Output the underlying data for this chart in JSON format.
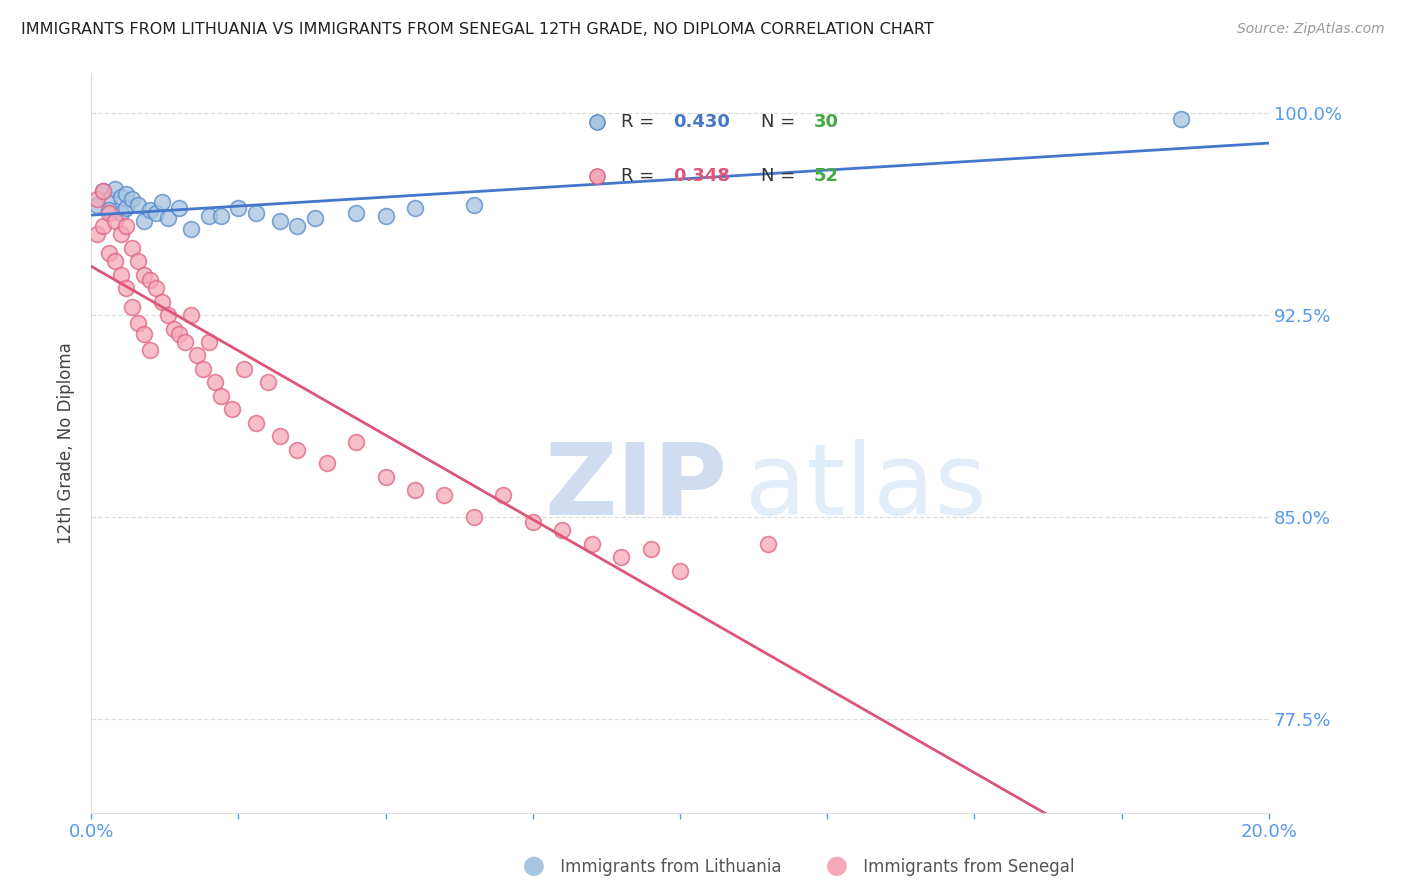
{
  "title": "IMMIGRANTS FROM LITHUANIA VS IMMIGRANTS FROM SENEGAL 12TH GRADE, NO DIPLOMA CORRELATION CHART",
  "source": "Source: ZipAtlas.com",
  "ylabel": "12th Grade, No Diploma",
  "xlim": [
    0.0,
    0.2
  ],
  "ylim": [
    0.74,
    1.015
  ],
  "yticks": [
    0.775,
    0.85,
    0.925,
    1.0
  ],
  "ytick_labels": [
    "77.5%",
    "85.0%",
    "92.5%",
    "100.0%"
  ],
  "xticks": [
    0.0,
    0.025,
    0.05,
    0.075,
    0.1,
    0.125,
    0.15,
    0.175,
    0.2
  ],
  "xtick_labels": [
    "0.0%",
    "",
    "",
    "",
    "",
    "",
    "",
    "",
    "20.0%"
  ],
  "legend_R1": "0.430",
  "legend_N1": "30",
  "legend_R2": "0.348",
  "legend_N2": "52",
  "blue_fill": "#A8C4E0",
  "blue_edge": "#5588CC",
  "pink_fill": "#F4A8B8",
  "pink_edge": "#E06080",
  "blue_line": "#4477CC",
  "pink_line": "#DD5577",
  "axis_color": "#5599EE",
  "grid_color": "#DDDDDD",
  "background_color": "#FFFFFF",
  "title_color": "#222222",
  "source_color": "#999999",
  "ylabel_color": "#444444",
  "green_color": "#44AA44",
  "legend_blue_text": "#4477CC",
  "legend_pink_text": "#DD5577",
  "lithuania_x": [
    0.001,
    0.002,
    0.003,
    0.003,
    0.004,
    0.005,
    0.005,
    0.006,
    0.006,
    0.007,
    0.008,
    0.009,
    0.01,
    0.011,
    0.012,
    0.013,
    0.015,
    0.017,
    0.02,
    0.022,
    0.025,
    0.028,
    0.032,
    0.035,
    0.038,
    0.045,
    0.05,
    0.055,
    0.065,
    0.185
  ],
  "lithuania_y": [
    0.966,
    0.971,
    0.968,
    0.964,
    0.972,
    0.969,
    0.963,
    0.97,
    0.965,
    0.968,
    0.966,
    0.96,
    0.964,
    0.963,
    0.967,
    0.961,
    0.965,
    0.957,
    0.962,
    0.962,
    0.965,
    0.963,
    0.96,
    0.958,
    0.961,
    0.963,
    0.962,
    0.965,
    0.966,
    0.998
  ],
  "senegal_x": [
    0.001,
    0.001,
    0.002,
    0.002,
    0.003,
    0.003,
    0.004,
    0.004,
    0.005,
    0.005,
    0.006,
    0.006,
    0.007,
    0.007,
    0.008,
    0.008,
    0.009,
    0.009,
    0.01,
    0.01,
    0.011,
    0.012,
    0.013,
    0.014,
    0.015,
    0.016,
    0.017,
    0.018,
    0.019,
    0.02,
    0.021,
    0.022,
    0.024,
    0.026,
    0.028,
    0.03,
    0.032,
    0.035,
    0.04,
    0.045,
    0.05,
    0.055,
    0.06,
    0.065,
    0.07,
    0.075,
    0.08,
    0.085,
    0.09,
    0.095,
    0.1,
    0.115
  ],
  "senegal_y": [
    0.968,
    0.955,
    0.971,
    0.958,
    0.963,
    0.948,
    0.96,
    0.945,
    0.955,
    0.94,
    0.958,
    0.935,
    0.95,
    0.928,
    0.945,
    0.922,
    0.94,
    0.918,
    0.938,
    0.912,
    0.935,
    0.93,
    0.925,
    0.92,
    0.918,
    0.915,
    0.925,
    0.91,
    0.905,
    0.915,
    0.9,
    0.895,
    0.89,
    0.905,
    0.885,
    0.9,
    0.88,
    0.875,
    0.87,
    0.878,
    0.865,
    0.86,
    0.858,
    0.85,
    0.858,
    0.848,
    0.845,
    0.84,
    0.835,
    0.838,
    0.83,
    0.84
  ]
}
